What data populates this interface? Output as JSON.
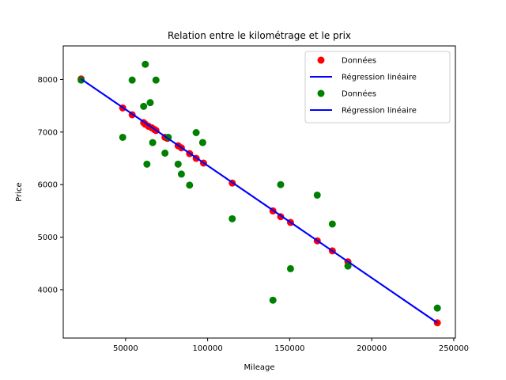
{
  "chart_data": {
    "type": "scatter",
    "title": "Relation entre le kilométrage et le prix",
    "xlabel": "Mileage",
    "ylabel": "Price",
    "xlim": [
      12000,
      251000
    ],
    "ylim": [
      3080,
      8640
    ],
    "xticks": [
      50000,
      100000,
      150000,
      200000,
      250000
    ],
    "yticks": [
      4000,
      5000,
      6000,
      7000,
      8000
    ],
    "grid": false,
    "legend_position": "top-right",
    "legend": [
      {
        "label": "Données",
        "kind": "marker",
        "color": "#ff0000"
      },
      {
        "label": "Régression linéaire",
        "kind": "line",
        "color": "#0000ff"
      },
      {
        "label": "Données",
        "kind": "marker",
        "color": "#008000"
      },
      {
        "label": "Régression linéaire",
        "kind": "line",
        "color": "#0000ff"
      }
    ],
    "series": [
      {
        "type": "scatter",
        "color": "#ff0000",
        "points": [
          [
            22899,
            8010
          ],
          [
            48235,
            7460
          ],
          [
            54000,
            7330
          ],
          [
            61000,
            7180
          ],
          [
            62000,
            7150
          ],
          [
            64000,
            7110
          ],
          [
            66000,
            7080
          ],
          [
            67500,
            7050
          ],
          [
            68500,
            7030
          ],
          [
            74000,
            6900
          ],
          [
            75500,
            6880
          ],
          [
            82000,
            6740
          ],
          [
            84000,
            6700
          ],
          [
            89000,
            6590
          ],
          [
            93000,
            6500
          ],
          [
            97500,
            6410
          ],
          [
            115000,
            6030
          ],
          [
            139800,
            5500
          ],
          [
            144500,
            5390
          ],
          [
            150500,
            5280
          ],
          [
            166800,
            4930
          ],
          [
            176000,
            4740
          ],
          [
            185500,
            4530
          ],
          [
            240000,
            3370
          ]
        ]
      },
      {
        "type": "line",
        "color": "#0000ff",
        "points": [
          [
            22899,
            8010
          ],
          [
            240000,
            3370
          ]
        ]
      },
      {
        "type": "scatter",
        "color": "#008000",
        "points": [
          [
            22899,
            7990
          ],
          [
            48235,
            6900
          ],
          [
            54000,
            7990
          ],
          [
            61000,
            7490
          ],
          [
            62000,
            8290
          ],
          [
            63000,
            6390
          ],
          [
            65000,
            7560
          ],
          [
            66500,
            6800
          ],
          [
            68500,
            7990
          ],
          [
            74000,
            6600
          ],
          [
            76000,
            6900
          ],
          [
            82000,
            6390
          ],
          [
            84000,
            6200
          ],
          [
            89000,
            5990
          ],
          [
            93000,
            6990
          ],
          [
            97000,
            6800
          ],
          [
            115000,
            5350
          ],
          [
            139800,
            3800
          ],
          [
            144500,
            6000
          ],
          [
            150500,
            4400
          ],
          [
            166800,
            5800
          ],
          [
            176000,
            5250
          ],
          [
            185500,
            4450
          ],
          [
            240000,
            3650
          ]
        ]
      },
      {
        "type": "line",
        "color": "#0000ff",
        "points": [
          [
            22899,
            8010
          ],
          [
            240000,
            3370
          ]
        ]
      }
    ]
  }
}
